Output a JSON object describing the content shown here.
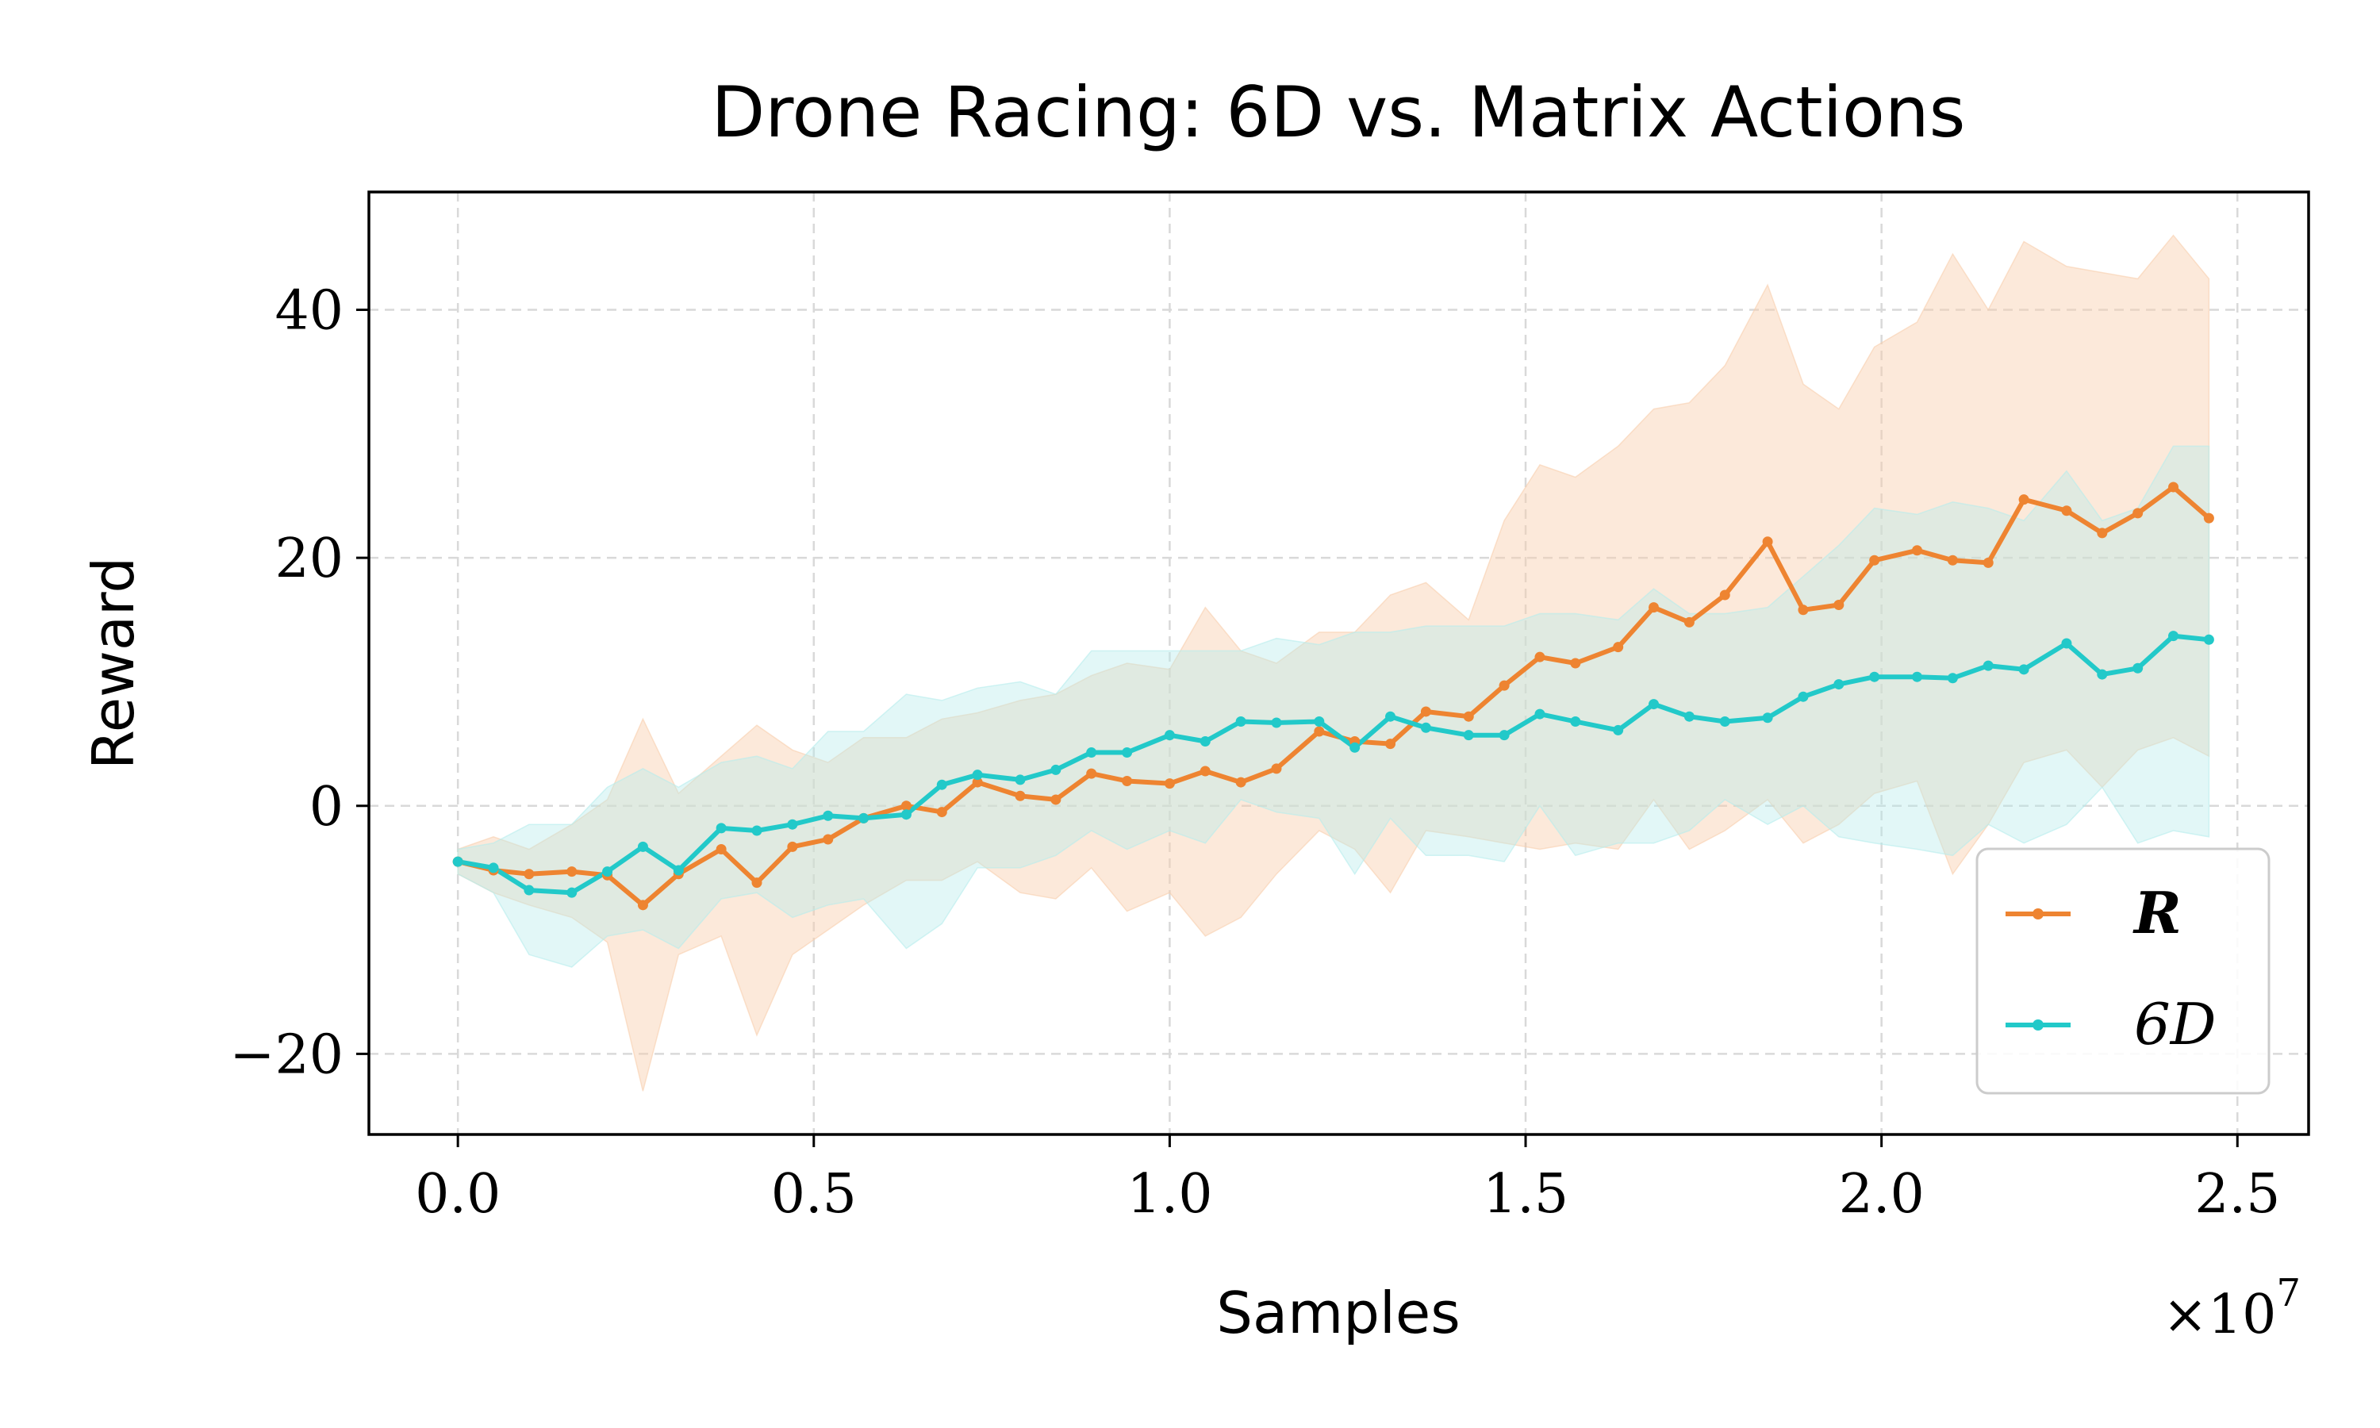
{
  "chart_data": {
    "type": "line",
    "title": "Drone Racing: 6D vs. Matrix Actions",
    "xlabel": "Samples",
    "ylabel": "Reward",
    "x_multiplier_label": "×10",
    "x_multiplier_exponent": "7",
    "xlim": [
      -0.125,
      2.6
    ],
    "ylim": [
      -26.5,
      49.5
    ],
    "xticks": [
      0.0,
      0.5,
      1.0,
      1.5,
      2.0,
      2.5
    ],
    "xtick_labels": [
      "0.0",
      "0.5",
      "1.0",
      "1.5",
      "2.0",
      "2.5"
    ],
    "yticks": [
      -20,
      0,
      20,
      40
    ],
    "ytick_labels": [
      "−20",
      "0",
      "20",
      "40"
    ],
    "grid": true,
    "legend_position": "bottom-right",
    "x": [
      0.0,
      0.05,
      0.1,
      0.16,
      0.21,
      0.26,
      0.31,
      0.37,
      0.42,
      0.47,
      0.52,
      0.57,
      0.63,
      0.68,
      0.73,
      0.79,
      0.84,
      0.89,
      0.94,
      1.0,
      1.05,
      1.1,
      1.15,
      1.21,
      1.26,
      1.31,
      1.36,
      1.42,
      1.47,
      1.52,
      1.57,
      1.63,
      1.68,
      1.73,
      1.78,
      1.84,
      1.89,
      1.94,
      1.99,
      2.05,
      2.1,
      2.15,
      2.2,
      2.26,
      2.31,
      2.36,
      2.41,
      2.46
    ],
    "series": [
      {
        "name": "R",
        "legend_label": "R",
        "legend_style": "bold-italic",
        "color": "#ee8431",
        "fill_color": "#f8cfae",
        "values": [
          -4.5,
          -5.2,
          -5.5,
          -5.3,
          -5.6,
          -8.0,
          -5.5,
          -3.5,
          -6.2,
          -3.3,
          -2.7,
          -1.0,
          0.0,
          -0.5,
          1.9,
          0.8,
          0.5,
          2.6,
          2.0,
          1.8,
          2.8,
          1.9,
          3.0,
          6.0,
          5.2,
          5.0,
          7.6,
          7.2,
          9.7,
          12.0,
          11.5,
          12.8,
          16.0,
          14.8,
          17.0,
          21.3,
          15.8,
          16.2,
          19.8,
          20.6,
          19.8,
          19.6,
          24.7,
          23.8,
          22.0,
          23.6,
          25.7,
          23.2
        ],
        "upper": [
          -3.5,
          -2.5,
          -3.5,
          -1.5,
          0.5,
          7.0,
          1.0,
          4.0,
          6.5,
          4.5,
          3.5,
          5.5,
          5.5,
          7.0,
          7.5,
          8.5,
          9.0,
          10.5,
          11.5,
          11.0,
          16.0,
          12.5,
          11.5,
          14.0,
          14.0,
          17.0,
          18.0,
          15.0,
          23.0,
          27.5,
          26.5,
          29.0,
          32.0,
          32.5,
          35.5,
          42.0,
          34.0,
          32.0,
          37.0,
          39.0,
          44.5,
          40.0,
          45.5,
          43.5,
          43.0,
          42.5,
          46.0,
          42.5
        ],
        "lower": [
          -5.5,
          -7.0,
          -8.0,
          -9.0,
          -11.0,
          -23.0,
          -12.0,
          -10.5,
          -18.5,
          -12.0,
          -10.0,
          -8.0,
          -6.0,
          -6.0,
          -4.5,
          -7.0,
          -7.5,
          -5.0,
          -8.5,
          -7.0,
          -10.5,
          -9.0,
          -5.5,
          -2.0,
          -3.5,
          -7.0,
          -2.0,
          -2.5,
          -3.0,
          -3.5,
          -3.0,
          -3.5,
          0.5,
          -3.5,
          -2.0,
          0.5,
          -3.0,
          -1.5,
          1.0,
          2.0,
          -5.5,
          -1.5,
          3.5,
          4.5,
          1.5,
          4.5,
          5.5,
          4.0
        ]
      },
      {
        "name": "6D",
        "legend_label": "6D",
        "legend_style": "italic",
        "color": "#22c9c9",
        "fill_color": "#b6ecec",
        "values": [
          -4.5,
          -5.0,
          -6.8,
          -7.0,
          -5.3,
          -3.3,
          -5.2,
          -1.8,
          -2.0,
          -1.5,
          -0.8,
          -1.0,
          -0.7,
          1.7,
          2.5,
          2.1,
          2.9,
          4.3,
          4.3,
          5.7,
          5.2,
          6.8,
          6.7,
          6.8,
          4.7,
          7.2,
          6.3,
          5.7,
          5.7,
          7.4,
          6.8,
          6.1,
          8.2,
          7.2,
          6.8,
          7.1,
          8.8,
          9.8,
          10.4,
          10.4,
          10.3,
          11.3,
          11.0,
          13.1,
          10.6,
          11.1,
          13.7,
          13.4
        ],
        "upper": [
          -3.5,
          -3.0,
          -1.5,
          -1.5,
          1.5,
          3.0,
          1.5,
          3.5,
          4.0,
          3.0,
          6.0,
          6.0,
          9.0,
          8.5,
          9.5,
          10.0,
          9.0,
          12.5,
          12.5,
          12.5,
          12.5,
          12.5,
          13.5,
          13.0,
          14.0,
          14.0,
          14.5,
          14.5,
          14.5,
          15.5,
          15.5,
          15.0,
          17.5,
          15.5,
          15.5,
          16.0,
          18.5,
          21.0,
          24.0,
          23.5,
          24.5,
          24.0,
          23.0,
          27.0,
          23.0,
          24.0,
          29.0,
          29.0
        ],
        "lower": [
          -5.5,
          -7.0,
          -12.0,
          -13.0,
          -10.5,
          -10.0,
          -11.5,
          -7.5,
          -7.0,
          -9.0,
          -8.0,
          -7.5,
          -11.5,
          -9.5,
          -5.0,
          -5.0,
          -4.0,
          -2.0,
          -3.5,
          -2.0,
          -3.0,
          0.5,
          -0.5,
          -1.0,
          -5.5,
          -1.0,
          -4.0,
          -4.0,
          -4.5,
          0.0,
          -4.0,
          -3.0,
          -3.0,
          -2.0,
          0.5,
          -1.5,
          0.0,
          -2.5,
          -3.0,
          -3.5,
          -4.0,
          -1.5,
          -3.0,
          -1.5,
          1.5,
          -3.0,
          -2.0,
          -2.5
        ]
      }
    ]
  }
}
